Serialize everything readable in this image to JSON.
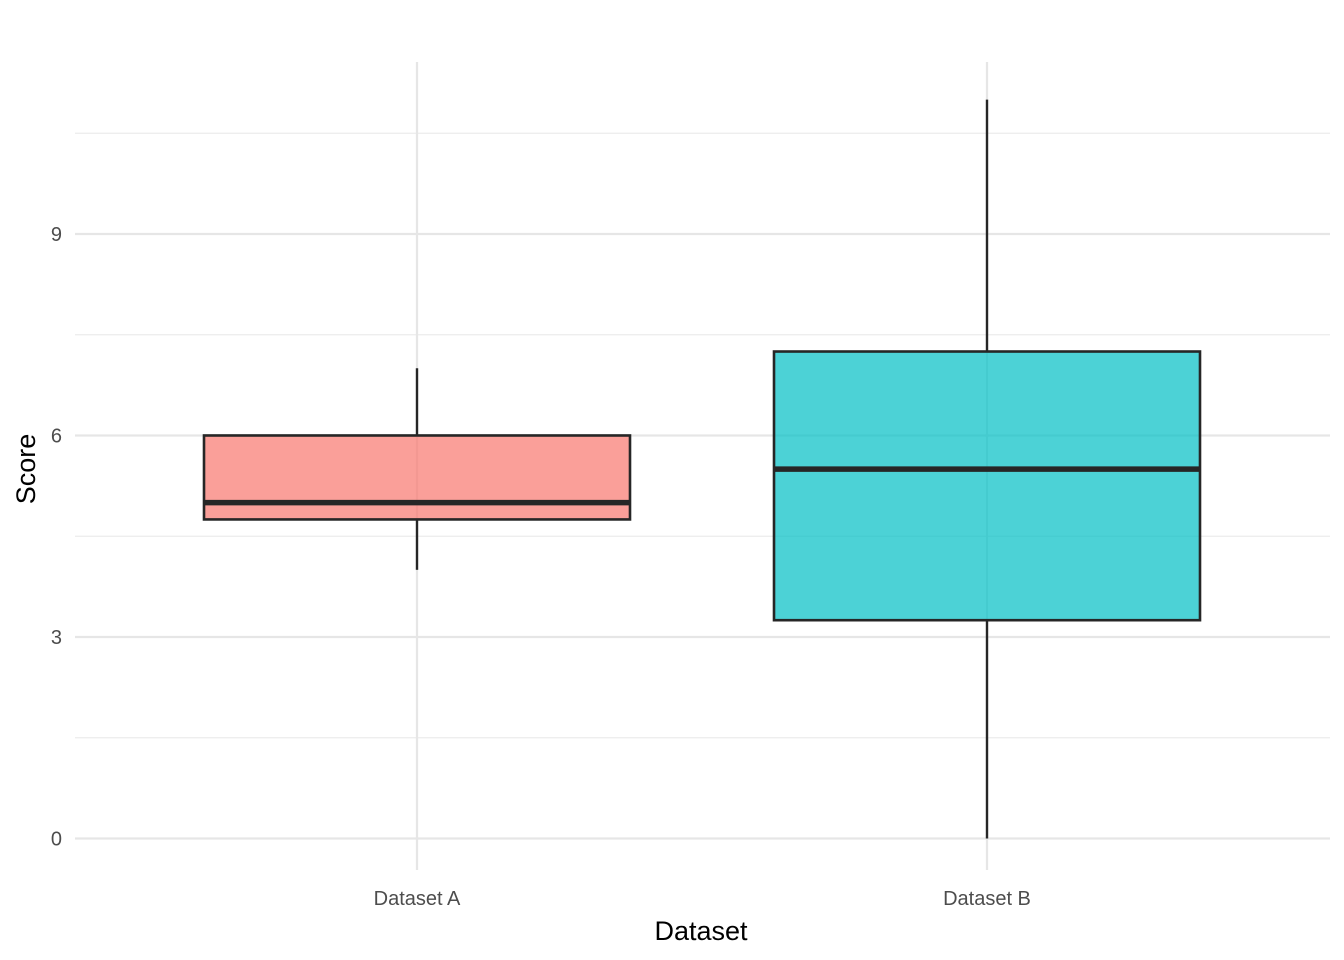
{
  "chart_data": {
    "type": "boxplot",
    "xlabel": "Dataset",
    "ylabel": "Score",
    "categories": [
      "Dataset A",
      "Dataset B"
    ],
    "ylim": [
      -0.5,
      11.6
    ],
    "y_major_ticks": [
      0,
      3,
      6,
      9
    ],
    "y_minor_ticks": [
      1.5,
      4.5,
      7.5,
      10.5
    ],
    "grid": true,
    "legend": "none",
    "boxes": [
      {
        "category": "Dataset A",
        "min": 4,
        "q1": 4.75,
        "median": 5,
        "q3": 6,
        "max": 7,
        "color": "#F8766D"
      },
      {
        "category": "Dataset B",
        "min": 0,
        "q1": 3.25,
        "median": 5.5,
        "q3": 7.25,
        "max": 11,
        "color": "#00BFC4"
      }
    ]
  }
}
